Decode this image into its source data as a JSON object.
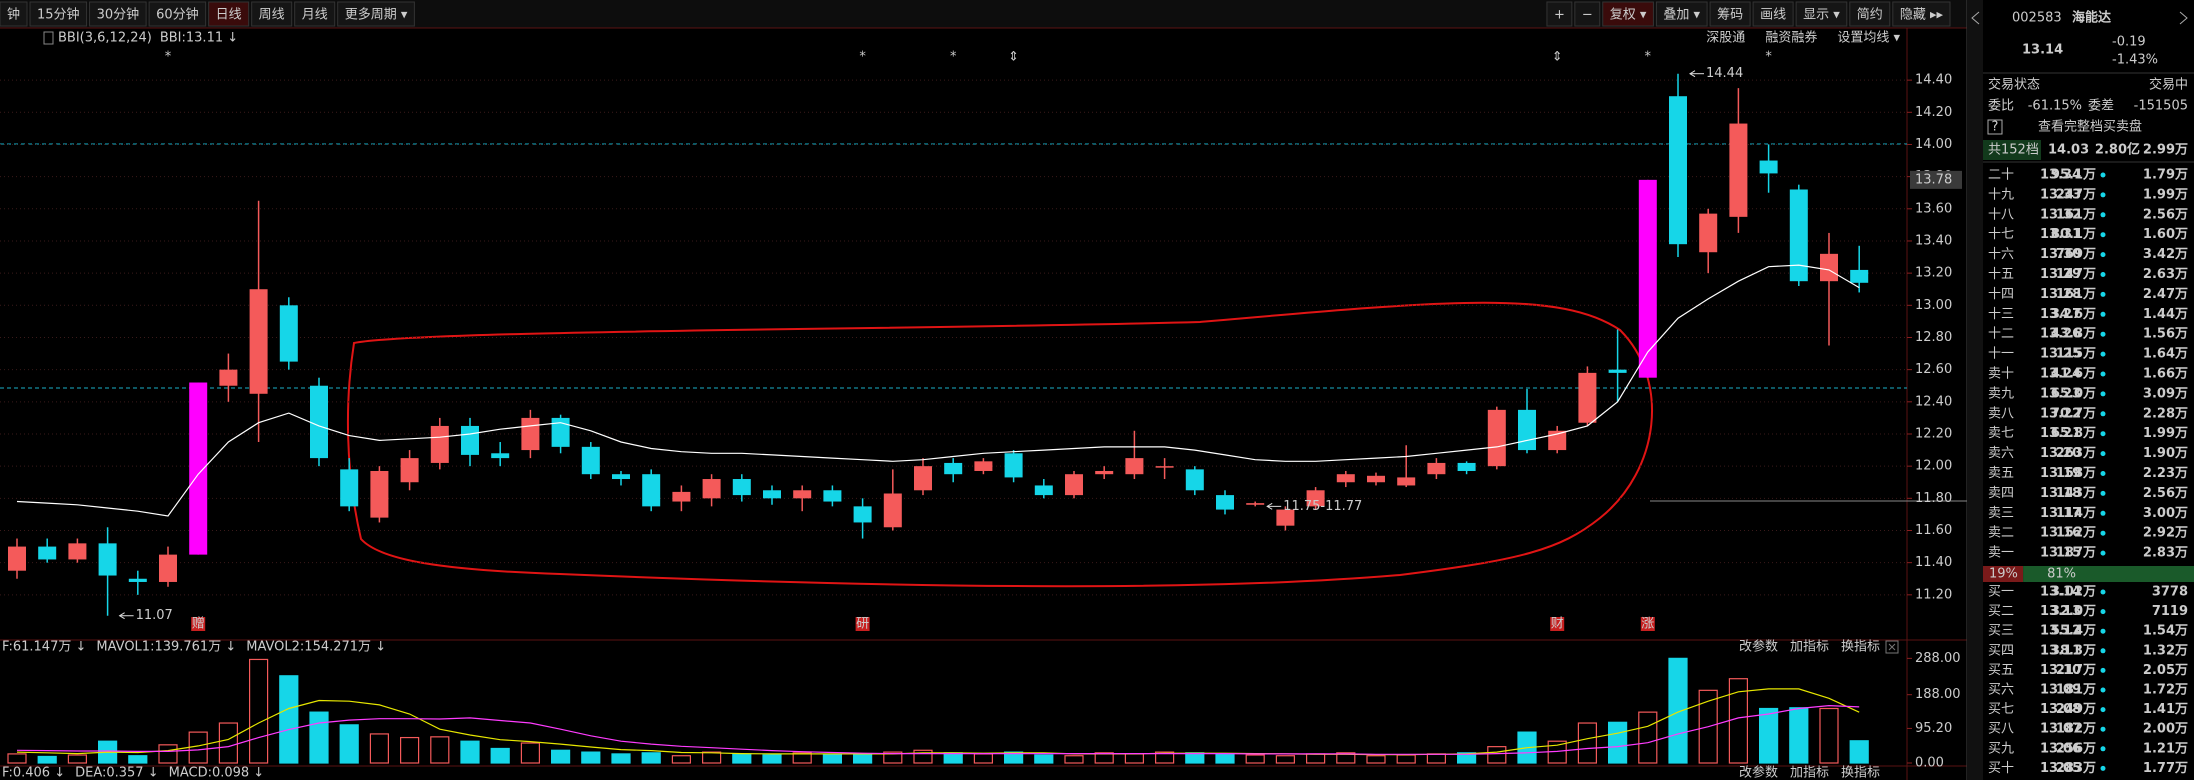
{
  "toolbar": {
    "periods": [
      "钟",
      "15分钟",
      "30分钟",
      "60分钟",
      "日线",
      "周线",
      "月线",
      "更多周期 ▾"
    ],
    "active": 4,
    "tools": [
      "+",
      "−",
      "复权 ▾",
      "叠加 ▾",
      "筹码",
      "画线",
      "显示 ▾",
      "简约",
      "隐藏 ▸▸"
    ]
  },
  "indicator_bar": {
    "name": "BBI(3,6,12,24)",
    "value": "BBI:13.11 ↓",
    "links": [
      "深股通",
      "融资融券",
      "设置均线 ▾"
    ]
  },
  "chart_data": {
    "type": "candlestick",
    "open": [
      11.35,
      11.5,
      11.42,
      11.52,
      11.3,
      11.28,
      11.45,
      12.5,
      12.45,
      13.0,
      12.5,
      11.98,
      11.68,
      11.9,
      12.02,
      12.25,
      12.08,
      12.1,
      12.3,
      12.12,
      11.95,
      11.95,
      11.78,
      11.8,
      11.92,
      11.85,
      11.8,
      11.85,
      11.75,
      11.62,
      11.85,
      12.02,
      11.97,
      12.08,
      11.88,
      11.82,
      11.95,
      11.95,
      12.0,
      11.98,
      11.82,
      11.76,
      11.63,
      11.75,
      11.9,
      11.9,
      11.88,
      11.95,
      12.02,
      12.0,
      12.35,
      12.1,
      12.27,
      12.6,
      12.55,
      14.3,
      13.33,
      13.55,
      13.9,
      13.72,
      13.15,
      13.22
    ],
    "close": [
      11.5,
      11.42,
      11.52,
      11.32,
      11.28,
      11.45,
      12.52,
      12.6,
      13.1,
      12.65,
      12.05,
      11.75,
      11.97,
      12.05,
      12.25,
      12.07,
      12.05,
      12.3,
      12.12,
      11.95,
      11.92,
      11.75,
      11.84,
      11.92,
      11.82,
      11.8,
      11.85,
      11.78,
      11.65,
      11.83,
      12.0,
      11.95,
      12.03,
      11.93,
      11.82,
      11.95,
      11.97,
      12.05,
      12.0,
      11.85,
      11.73,
      11.77,
      11.73,
      11.85,
      11.95,
      11.94,
      11.93,
      12.02,
      11.97,
      12.35,
      12.1,
      12.22,
      12.58,
      12.58,
      13.78,
      13.38,
      13.57,
      14.13,
      13.82,
      13.15,
      13.32,
      13.14
    ],
    "high": [
      11.55,
      11.55,
      11.55,
      11.62,
      11.35,
      11.5,
      12.52,
      12.7,
      13.65,
      13.05,
      12.55,
      12.05,
      12.0,
      12.1,
      12.3,
      12.3,
      12.15,
      12.35,
      12.32,
      12.15,
      11.97,
      11.98,
      11.88,
      11.95,
      11.95,
      11.88,
      11.88,
      11.88,
      11.8,
      11.98,
      12.05,
      12.05,
      12.05,
      12.1,
      11.92,
      11.97,
      12.0,
      12.22,
      12.05,
      12.0,
      11.85,
      11.78,
      11.75,
      11.87,
      11.97,
      11.96,
      12.13,
      12.05,
      12.03,
      12.37,
      12.48,
      12.25,
      12.62,
      12.85,
      13.78,
      14.44,
      13.6,
      14.35,
      14.0,
      13.75,
      13.45,
      13.37
    ],
    "low": [
      11.3,
      11.4,
      11.4,
      11.07,
      11.2,
      11.25,
      11.45,
      12.4,
      12.15,
      12.6,
      12.0,
      11.72,
      11.65,
      11.85,
      11.98,
      12.0,
      12.0,
      12.05,
      12.08,
      11.92,
      11.88,
      11.72,
      11.72,
      11.75,
      11.78,
      11.76,
      11.72,
      11.75,
      11.55,
      11.6,
      11.82,
      11.9,
      11.95,
      11.9,
      11.8,
      11.8,
      11.92,
      11.92,
      11.92,
      11.82,
      11.7,
      11.75,
      11.6,
      11.73,
      11.87,
      11.88,
      11.87,
      11.92,
      11.95,
      11.98,
      12.08,
      12.08,
      12.25,
      12.4,
      12.55,
      13.3,
      13.2,
      13.45,
      13.7,
      13.12,
      12.75,
      13.08
    ],
    "bbi": [
      11.78,
      11.77,
      11.76,
      11.74,
      11.72,
      11.69,
      11.95,
      12.15,
      12.27,
      12.33,
      12.25,
      12.19,
      12.16,
      12.17,
      12.18,
      12.2,
      12.23,
      12.25,
      12.27,
      12.22,
      12.15,
      12.11,
      12.09,
      12.08,
      12.08,
      12.07,
      12.06,
      12.05,
      12.04,
      12.03,
      12.04,
      12.06,
      12.08,
      12.09,
      12.1,
      12.11,
      12.12,
      12.12,
      12.12,
      12.1,
      12.07,
      12.04,
      12.03,
      12.03,
      12.04,
      12.05,
      12.06,
      12.08,
      12.1,
      12.12,
      12.16,
      12.2,
      12.25,
      12.4,
      12.71,
      12.92,
      13.04,
      13.15,
      13.24,
      13.25,
      13.22,
      13.11
    ],
    "magenta_candles": [
      6,
      54
    ],
    "colors": {
      "up": "#f45a5a",
      "down": "#16d6e8",
      "limit_up": "#ff00ff",
      "bbi": "#ffffff"
    },
    "ylim": [
      11.0,
      14.55
    ],
    "yticks": [
      {
        "value": 14.4,
        "label": "14.40"
      },
      {
        "value": 14.2,
        "label": "14.20"
      },
      {
        "value": 14.0,
        "label": "14.00"
      },
      {
        "value": 13.8,
        "label": "13.80"
      },
      {
        "value": 13.6,
        "label": "13.60"
      },
      {
        "value": 13.4,
        "label": "13.40"
      },
      {
        "value": 13.2,
        "label": "13.20"
      },
      {
        "value": 13.0,
        "label": "13.00"
      },
      {
        "value": 12.8,
        "label": "12.80"
      },
      {
        "value": 12.6,
        "label": "12.60"
      },
      {
        "value": 12.4,
        "label": "12.40"
      },
      {
        "value": 12.2,
        "label": "12.20"
      },
      {
        "value": 12.0,
        "label": "12.00"
      },
      {
        "value": 11.8,
        "label": "11.80"
      },
      {
        "value": 11.6,
        "label": "11.60"
      },
      {
        "value": 11.4,
        "label": "11.40"
      },
      {
        "value": 11.2,
        "label": "11.20"
      }
    ],
    "grid": true,
    "axis_highlight": {
      "value": 13.78,
      "label": "13.78"
    },
    "top_markers": [
      {
        "index": 5,
        "symbol": "*"
      },
      {
        "index": 28,
        "symbol": "*"
      },
      {
        "index": 31,
        "symbol": "*"
      },
      {
        "index": 33,
        "symbol": "⇕"
      },
      {
        "index": 51,
        "symbol": "⇕"
      },
      {
        "index": 54,
        "symbol": "*"
      },
      {
        "index": 58,
        "symbol": "*"
      }
    ],
    "tags": [
      {
        "index": 6,
        "label": "赠"
      },
      {
        "index": 28,
        "label": "研"
      },
      {
        "index": 51,
        "label": "财"
      },
      {
        "index": 54,
        "label": "涨"
      }
    ],
    "annotations": [
      {
        "index": 55,
        "value": 14.44,
        "label": "14.44"
      },
      {
        "index": 3,
        "value": 11.07,
        "label": "11.07"
      },
      {
        "index": 41,
        "value": 11.75,
        "label": "11.75-11.77"
      }
    ]
  },
  "volume": {
    "header": [
      "F:61.147万 ↓",
      "MAVOL1:139.761万 ↓",
      "MAVOL2:154.271万 ↓"
    ],
    "links": [
      "改参数",
      "加指标",
      "换指标"
    ],
    "values": [
      25,
      18,
      22,
      60,
      20,
      50,
      85,
      110,
      285,
      240,
      140,
      105,
      80,
      70,
      72,
      60,
      40,
      55,
      35,
      30,
      25,
      28,
      20,
      30,
      25,
      22,
      28,
      22,
      25,
      30,
      35,
      28,
      25,
      30,
      22,
      20,
      28,
      25,
      30,
      28,
      25,
      22,
      20,
      25,
      28,
      20,
      22,
      25,
      28,
      45,
      85,
      60,
      110,
      112,
      140,
      288,
      200,
      232,
      150,
      152,
      150,
      61.147
    ],
    "mavol1": [
      30,
      28,
      26,
      30,
      29,
      34,
      47,
      65,
      110,
      150,
      172,
      170,
      160,
      135,
      93,
      77,
      64,
      59,
      52,
      44,
      37,
      34,
      29,
      28,
      26,
      25,
      25,
      25,
      25,
      25,
      28,
      28,
      27,
      28,
      28,
      25,
      25,
      25,
      27,
      27,
      27,
      26,
      25,
      24,
      24,
      23,
      23,
      24,
      25,
      30,
      42,
      49,
      67,
      82,
      101,
      140,
      170,
      196,
      204,
      204,
      178,
      139.761
    ],
    "mavol2": [
      35,
      34,
      33,
      33,
      32,
      32,
      36,
      45,
      70,
      92,
      110,
      118,
      122,
      122,
      121,
      124,
      117,
      110,
      93,
      75,
      60,
      52,
      46,
      42,
      38,
      34,
      31,
      29,
      27,
      26,
      26,
      26,
      26,
      26,
      26,
      26,
      26,
      26,
      26,
      26,
      26,
      25,
      25,
      25,
      25,
      24,
      24,
      24,
      24,
      26,
      28,
      32,
      40,
      45,
      56,
      80,
      100,
      124,
      135,
      150,
      158,
      154.271
    ],
    "colors": {
      "mavol1": "#e6e600",
      "mavol2": "#ff3cff"
    },
    "ylim": [
      0,
      300
    ],
    "yticks": [
      {
        "value": 288,
        "label": "288.00"
      },
      {
        "value": 188,
        "label": "188.00"
      },
      {
        "value": 95.2,
        "label": "95.20"
      },
      {
        "value": 0,
        "label": "0.00"
      }
    ]
  },
  "macd": {
    "header": [
      "F:0.406 ↓",
      "DEA:0.357 ↓",
      "MACD:0.098 ↓"
    ],
    "links": [
      "改参数",
      "加指标",
      "换指标"
    ]
  },
  "quote": {
    "code": "002583",
    "name": "海能达",
    "price": "13.14",
    "change": "-0.19",
    "change_pct": "-1.43%",
    "status_label": "交易状态",
    "status": "交易中",
    "ratio_label": "委比",
    "ratio": "-61.15%",
    "diff_label": "委差",
    "diff": "-151505",
    "help": "?",
    "full_book": "查看完整档买卖盘",
    "summary": [
      "共152档",
      "14.03",
      "2.80亿",
      "2.99万"
    ],
    "asks": [
      [
        "二十",
        "13.34",
        "95.1万",
        "1.79万"
      ],
      [
        "十九",
        "13.33",
        "247万",
        "1.99万"
      ],
      [
        "十八",
        "13.32",
        "161万",
        "2.56万"
      ],
      [
        "十七",
        "13.31",
        "80.1万",
        "1.60万"
      ],
      [
        "十六",
        "13.30",
        "769万",
        "3.42万"
      ],
      [
        "十五",
        "13.29",
        "147万",
        "2.63万"
      ],
      [
        "十四",
        "13.28",
        "161万",
        "2.47万"
      ],
      [
        "十三",
        "13.27",
        "34.6万",
        "1.44万"
      ],
      [
        "十二",
        "13.26",
        "43.8万",
        "1.56万"
      ],
      [
        "十一",
        "13.25",
        "115万",
        "1.64万"
      ],
      [
        "卖十",
        "13.24",
        "41.6万",
        "1.66万"
      ],
      [
        "卖九",
        "13.23",
        "65.0万",
        "3.09万"
      ],
      [
        "卖八",
        "13.22",
        "70.7万",
        "2.28万"
      ],
      [
        "卖七",
        "13.21",
        "65.8万",
        "1.99万"
      ],
      [
        "卖六",
        "13.20",
        "263万",
        "1.90万"
      ],
      [
        "卖五",
        "13.19",
        "158万",
        "2.23万"
      ],
      [
        "卖四",
        "13.18",
        "143万",
        "2.56万"
      ],
      [
        "卖三",
        "13.17",
        "114万",
        "3.00万"
      ],
      [
        "卖二",
        "13.16",
        "152万",
        "2.92万"
      ],
      [
        "卖一",
        "13.15",
        "187万",
        "2.83万"
      ]
    ],
    "bar": [
      {
        "value": 19,
        "label": "19%"
      },
      {
        "value": 81,
        "label": "81%"
      }
    ],
    "bids": [
      [
        "买一",
        "13.14",
        "3.02万",
        "3778"
      ],
      [
        "买二",
        "13.13",
        "32.0万",
        "7119"
      ],
      [
        "买三",
        "13.12",
        "55.4万",
        "1.54万"
      ],
      [
        "买四",
        "13.11",
        "38.3万",
        "1.32万"
      ],
      [
        "买五",
        "13.10",
        "217万",
        "2.05万"
      ],
      [
        "买六",
        "13.09",
        "181万",
        "1.72万"
      ],
      [
        "买七",
        "13.08",
        "249万",
        "1.41万"
      ],
      [
        "买八",
        "13.07",
        "182万",
        "2.00万"
      ],
      [
        "买九",
        "13.06",
        "256万",
        "1.21万"
      ],
      [
        "买十",
        "13.05",
        "283万",
        "1.77万"
      ]
    ]
  }
}
